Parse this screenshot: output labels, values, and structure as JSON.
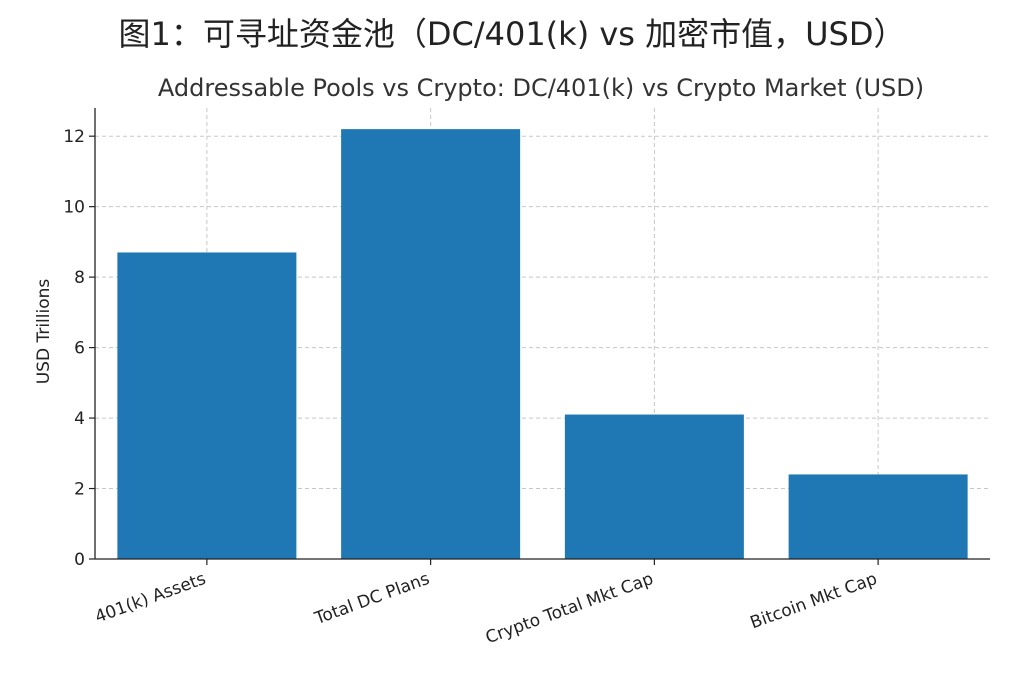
{
  "figure": {
    "suptitle": "图1：可寻址资金池（DC/401(k) vs 加密市值，USD）"
  },
  "chart_data": {
    "type": "bar",
    "title": "Addressable Pools vs Crypto: DC/401(k) vs Crypto Market (USD)",
    "xlabel": "",
    "ylabel": "USD Trillions",
    "categories": [
      "401(k) Assets",
      "Total DC Plans",
      "Crypto Total Mkt Cap",
      "Bitcoin Mkt Cap"
    ],
    "values": [
      8.7,
      12.2,
      4.1,
      2.4
    ],
    "ylim": [
      0,
      12.8
    ],
    "yticks": [
      0,
      2,
      4,
      6,
      8,
      10,
      12
    ],
    "grid": true,
    "bar_color": "#1f77b4",
    "xtick_rotation": -20
  }
}
